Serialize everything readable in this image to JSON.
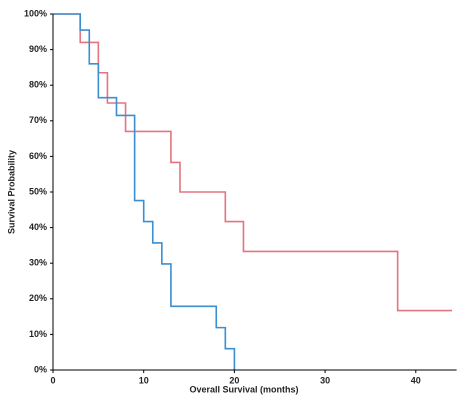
{
  "chart_data": {
    "type": "step",
    "xlabel": "Overall Survival (months)",
    "ylabel": "Survival Probability",
    "xlim": [
      0,
      44.5
    ],
    "ylim": [
      0,
      100
    ],
    "xticks": [
      0,
      10,
      20,
      30,
      40
    ],
    "yticks": [
      {
        "value": 0,
        "label": "0%"
      },
      {
        "value": 10,
        "label": "10%"
      },
      {
        "value": 20,
        "label": "20%"
      },
      {
        "value": 30,
        "label": "30%"
      },
      {
        "value": 40,
        "label": "40%"
      },
      {
        "value": 50,
        "label": "50%"
      },
      {
        "value": 60,
        "label": "60%"
      },
      {
        "value": 70,
        "label": "70%"
      },
      {
        "value": 80,
        "label": "80%"
      },
      {
        "value": 90,
        "label": "90%"
      },
      {
        "value": 100,
        "label": "100%"
      }
    ],
    "series": [
      {
        "color": "#e27580",
        "x": [
          0,
          3,
          5,
          6,
          8,
          13,
          14,
          19,
          21,
          38,
          44
        ],
        "values": [
          100,
          92,
          83.5,
          75,
          67,
          58.3,
          50,
          41.7,
          33.3,
          16.7,
          16.7
        ]
      },
      {
        "color": "#3b8fd1",
        "x": [
          0,
          3,
          4,
          5,
          7,
          9,
          10,
          11,
          12,
          13,
          18,
          19,
          20
        ],
        "values": [
          100,
          95.5,
          86,
          76.5,
          71.5,
          47.6,
          41.7,
          35.7,
          29.8,
          17.9,
          11.9,
          6,
          0
        ]
      }
    ]
  }
}
